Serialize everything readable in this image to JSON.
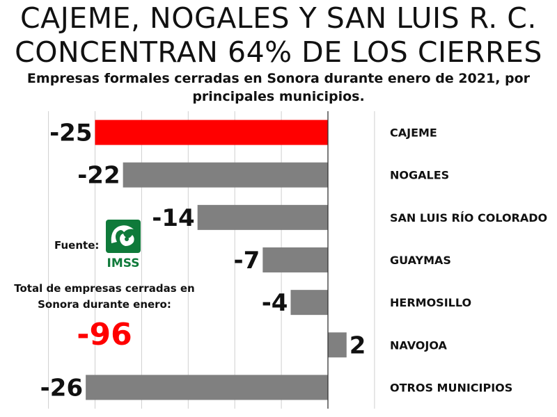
{
  "headline": "CAJEME, NOGALES Y SAN LUIS R. C. CONCENTRAN 64% DE LOS CIERRES",
  "subtitle": "Empresas formales cerradas en Sonora durante enero de 2021, por principales municipios.",
  "source": {
    "label": "Fuente:",
    "logo_text": "IMSS",
    "logo_color": "#0f7a3a"
  },
  "total": {
    "label": "Total de empresas cerradas en Sonora durante enero:",
    "value": "-96",
    "color": "#ff0000"
  },
  "chart_data": {
    "type": "bar",
    "orientation": "horizontal",
    "categories": [
      "CAJEME",
      "NOGALES",
      "SAN LUIS RÍO COLORADO",
      "GUAYMAS",
      "HERMOSILLO",
      "NAVOJOA",
      "OTROS MUNICIPIOS"
    ],
    "values": [
      -25,
      -22,
      -14,
      -7,
      -4,
      2,
      -26
    ],
    "data_labels": [
      "-25",
      "-22",
      "-14",
      "-7",
      "-4",
      "2",
      "-26"
    ],
    "highlight_index": 0,
    "colors": {
      "highlight": "#ff0000",
      "default": "#808080"
    },
    "xlim": [
      -30,
      5
    ],
    "grid": true,
    "title": "Empresas formales cerradas en Sonora durante enero de 2021, por principales municipios."
  }
}
